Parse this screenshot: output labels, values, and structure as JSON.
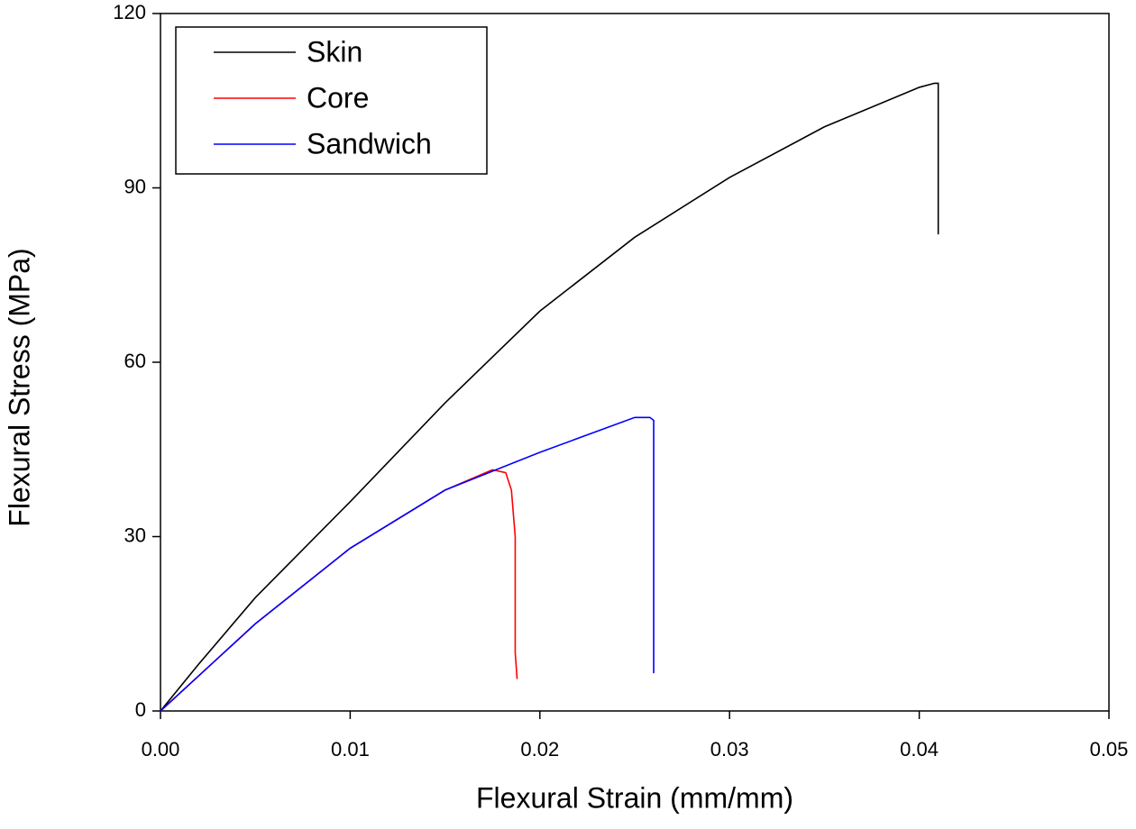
{
  "chart_data": {
    "type": "line",
    "x_label": "Flexural Strain (mm/mm)",
    "y_label": "Flexural Stress (MPa)",
    "xlim": [
      0,
      0.05
    ],
    "xticks": [
      {
        "value": 0,
        "label": "0.00"
      },
      0.01,
      0.02,
      0.03,
      0.04,
      0.05
    ],
    "ylim": [
      0,
      120
    ],
    "yticks": [
      0,
      30,
      60,
      90,
      120
    ],
    "legend": "upper left",
    "series": [
      {
        "name": "Skin",
        "color": "#000000",
        "x": [
          0,
          0.002,
          0.005,
          0.01,
          0.015,
          0.02,
          0.025,
          0.03,
          0.035,
          0.04,
          0.0408,
          0.041,
          0.041
        ],
        "values": [
          0,
          8,
          19.5,
          36,
          53,
          68.8,
          81.5,
          91.8,
          100.5,
          107.3,
          108,
          108,
          82
        ]
      },
      {
        "name": "Core",
        "color": "#ff0000",
        "x": [
          0,
          0.002,
          0.005,
          0.01,
          0.015,
          0.0175,
          0.0182,
          0.0185,
          0.0187,
          0.0187,
          0.0188
        ],
        "values": [
          0,
          6,
          15,
          28,
          38,
          41.5,
          41,
          38,
          30,
          10,
          5.5
        ]
      },
      {
        "name": "Sandwich",
        "color": "#0000ff",
        "x": [
          0,
          0.002,
          0.005,
          0.01,
          0.015,
          0.02,
          0.025,
          0.0258,
          0.026,
          0.026
        ],
        "values": [
          0,
          6,
          15,
          28,
          38,
          44.5,
          50.5,
          50.5,
          50,
          6.5
        ]
      }
    ]
  }
}
